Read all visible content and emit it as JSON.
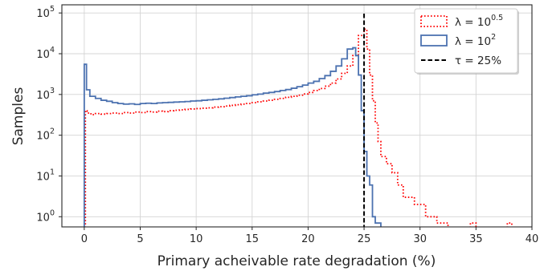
{
  "chart_data": {
    "type": "histogram-step",
    "xlabel": "Primary acheivable rate degradation (%)",
    "ylabel": "Samples",
    "xlim": [
      -2,
      40
    ],
    "ylim_log10": [
      -0.25,
      5.2
    ],
    "yscale": "log",
    "grid": true,
    "legend_position": "top-right",
    "x_ticks": [
      0,
      5,
      10,
      15,
      20,
      25,
      30,
      35,
      40
    ],
    "x_tick_labels": [
      "0",
      "5",
      "10",
      "15",
      "20",
      "25",
      "30",
      "35",
      "40"
    ],
    "y_ticks": [
      0,
      1,
      2,
      3,
      4,
      5
    ],
    "y_tick_labels": [
      {
        "base": "10",
        "exp": "0"
      },
      {
        "base": "10",
        "exp": "1"
      },
      {
        "base": "10",
        "exp": "2"
      },
      {
        "base": "10",
        "exp": "3"
      },
      {
        "base": "10",
        "exp": "4"
      },
      {
        "base": "10",
        "exp": "5"
      }
    ],
    "series": [
      {
        "name": "λ = 10^0.5",
        "legend_prefix": "λ = 10",
        "legend_sup": "0.5",
        "style": "dotted",
        "color": "#ff0000",
        "bins": [
          [
            0.1,
            0.25,
            400
          ],
          [
            0.25,
            0.6,
            350
          ],
          [
            0.6,
            1.0,
            320
          ],
          [
            1.0,
            1.5,
            340
          ],
          [
            1.5,
            2.0,
            330
          ],
          [
            2.0,
            2.5,
            340
          ],
          [
            2.5,
            3.0,
            350
          ],
          [
            3.0,
            3.5,
            340
          ],
          [
            3.5,
            4.0,
            360
          ],
          [
            4.0,
            4.5,
            350
          ],
          [
            4.5,
            5.0,
            370
          ],
          [
            5.0,
            5.5,
            360
          ],
          [
            5.5,
            6.0,
            380
          ],
          [
            6.0,
            6.5,
            370
          ],
          [
            6.5,
            7.0,
            390
          ],
          [
            7.0,
            7.5,
            380
          ],
          [
            7.5,
            8.0,
            400
          ],
          [
            8.0,
            8.5,
            410
          ],
          [
            8.5,
            9.0,
            420
          ],
          [
            9.0,
            9.5,
            430
          ],
          [
            9.5,
            10.0,
            440
          ],
          [
            10.0,
            10.5,
            450
          ],
          [
            10.5,
            11.0,
            460
          ],
          [
            11.0,
            11.5,
            470
          ],
          [
            11.5,
            12.0,
            490
          ],
          [
            12.0,
            12.5,
            500
          ],
          [
            12.5,
            13.0,
            520
          ],
          [
            13.0,
            13.5,
            540
          ],
          [
            13.5,
            14.0,
            560
          ],
          [
            14.0,
            14.5,
            580
          ],
          [
            14.5,
            15.0,
            600
          ],
          [
            15.0,
            15.5,
            630
          ],
          [
            15.5,
            16.0,
            660
          ],
          [
            16.0,
            16.5,
            690
          ],
          [
            16.5,
            17.0,
            720
          ],
          [
            17.0,
            17.5,
            760
          ],
          [
            17.5,
            18.0,
            800
          ],
          [
            18.0,
            18.5,
            850
          ],
          [
            18.5,
            19.0,
            900
          ],
          [
            19.0,
            19.5,
            960
          ],
          [
            19.5,
            20.0,
            1030
          ],
          [
            20.0,
            20.5,
            1120
          ],
          [
            20.5,
            21.0,
            1250
          ],
          [
            21.0,
            21.5,
            1400
          ],
          [
            21.5,
            22.0,
            1600
          ],
          [
            22.0,
            22.5,
            1900
          ],
          [
            22.5,
            23.0,
            2400
          ],
          [
            23.0,
            23.5,
            3300
          ],
          [
            23.5,
            24.0,
            5000
          ],
          [
            24.0,
            24.5,
            9000
          ],
          [
            24.5,
            25.0,
            28000
          ],
          [
            25.0,
            25.25,
            40000
          ],
          [
            25.25,
            25.5,
            13000
          ],
          [
            25.5,
            25.75,
            3000
          ],
          [
            25.75,
            26.0,
            700
          ],
          [
            26.0,
            26.25,
            200
          ],
          [
            26.25,
            26.5,
            70
          ],
          [
            26.5,
            27.0,
            30
          ],
          [
            27.0,
            27.5,
            20
          ],
          [
            27.5,
            28.0,
            12
          ],
          [
            28.0,
            28.5,
            6
          ],
          [
            28.5,
            29.5,
            3
          ],
          [
            29.5,
            30.5,
            2
          ],
          [
            30.5,
            31.5,
            1
          ],
          [
            31.5,
            32.0,
            0.7
          ],
          [
            32.0,
            32.5,
            0.7
          ],
          [
            34.5,
            35.0,
            0.7
          ],
          [
            37.8,
            38.2,
            0.7
          ]
        ]
      },
      {
        "name": "λ = 10^2",
        "legend_prefix": "λ = 10",
        "legend_sup": "2",
        "style": "solid",
        "color": "#4c72b0",
        "bins": [
          [
            0.0,
            0.2,
            5500
          ],
          [
            0.2,
            0.5,
            1300
          ],
          [
            0.5,
            1.0,
            900
          ],
          [
            1.0,
            1.5,
            800
          ],
          [
            1.5,
            2.0,
            720
          ],
          [
            2.0,
            2.5,
            680
          ],
          [
            2.5,
            3.0,
            630
          ],
          [
            3.0,
            3.5,
            600
          ],
          [
            3.5,
            4.0,
            580
          ],
          [
            4.0,
            4.5,
            590
          ],
          [
            4.5,
            5.0,
            570
          ],
          [
            5.0,
            5.5,
            600
          ],
          [
            5.5,
            6.0,
            610
          ],
          [
            6.0,
            6.5,
            600
          ],
          [
            6.5,
            7.0,
            620
          ],
          [
            7.0,
            7.5,
            630
          ],
          [
            7.5,
            8.0,
            640
          ],
          [
            8.0,
            8.5,
            650
          ],
          [
            8.5,
            9.0,
            660
          ],
          [
            9.0,
            9.5,
            670
          ],
          [
            9.5,
            10.0,
            690
          ],
          [
            10.0,
            10.5,
            700
          ],
          [
            10.5,
            11.0,
            720
          ],
          [
            11.0,
            11.5,
            740
          ],
          [
            11.5,
            12.0,
            760
          ],
          [
            12.0,
            12.5,
            780
          ],
          [
            12.5,
            13.0,
            810
          ],
          [
            13.0,
            13.5,
            840
          ],
          [
            13.5,
            14.0,
            870
          ],
          [
            14.0,
            14.5,
            900
          ],
          [
            14.5,
            15.0,
            930
          ],
          [
            15.0,
            15.5,
            980
          ],
          [
            15.5,
            16.0,
            1020
          ],
          [
            16.0,
            16.5,
            1080
          ],
          [
            16.5,
            17.0,
            1120
          ],
          [
            17.0,
            17.5,
            1180
          ],
          [
            17.5,
            18.0,
            1250
          ],
          [
            18.0,
            18.5,
            1320
          ],
          [
            18.5,
            19.0,
            1420
          ],
          [
            19.0,
            19.5,
            1550
          ],
          [
            19.5,
            20.0,
            1700
          ],
          [
            20.0,
            20.5,
            1900
          ],
          [
            20.5,
            21.0,
            2100
          ],
          [
            21.0,
            21.5,
            2450
          ],
          [
            21.5,
            22.0,
            2900
          ],
          [
            22.0,
            22.5,
            3700
          ],
          [
            22.5,
            23.0,
            5000
          ],
          [
            23.0,
            23.5,
            7500
          ],
          [
            23.5,
            24.0,
            13000
          ],
          [
            24.0,
            24.25,
            14000
          ],
          [
            24.25,
            24.5,
            9000
          ],
          [
            24.5,
            24.75,
            3000
          ],
          [
            24.75,
            25.0,
            400
          ],
          [
            25.0,
            25.25,
            40
          ],
          [
            25.25,
            25.5,
            10
          ],
          [
            25.5,
            25.75,
            6
          ],
          [
            25.75,
            26.0,
            1
          ],
          [
            26.0,
            26.25,
            0.7
          ],
          [
            26.25,
            26.5,
            0.7
          ]
        ]
      }
    ],
    "reference_line": {
      "name": "τ = 25%",
      "legend_label": "τ = 25%",
      "x": 25,
      "style": "dashed",
      "color": "#000000"
    }
  }
}
